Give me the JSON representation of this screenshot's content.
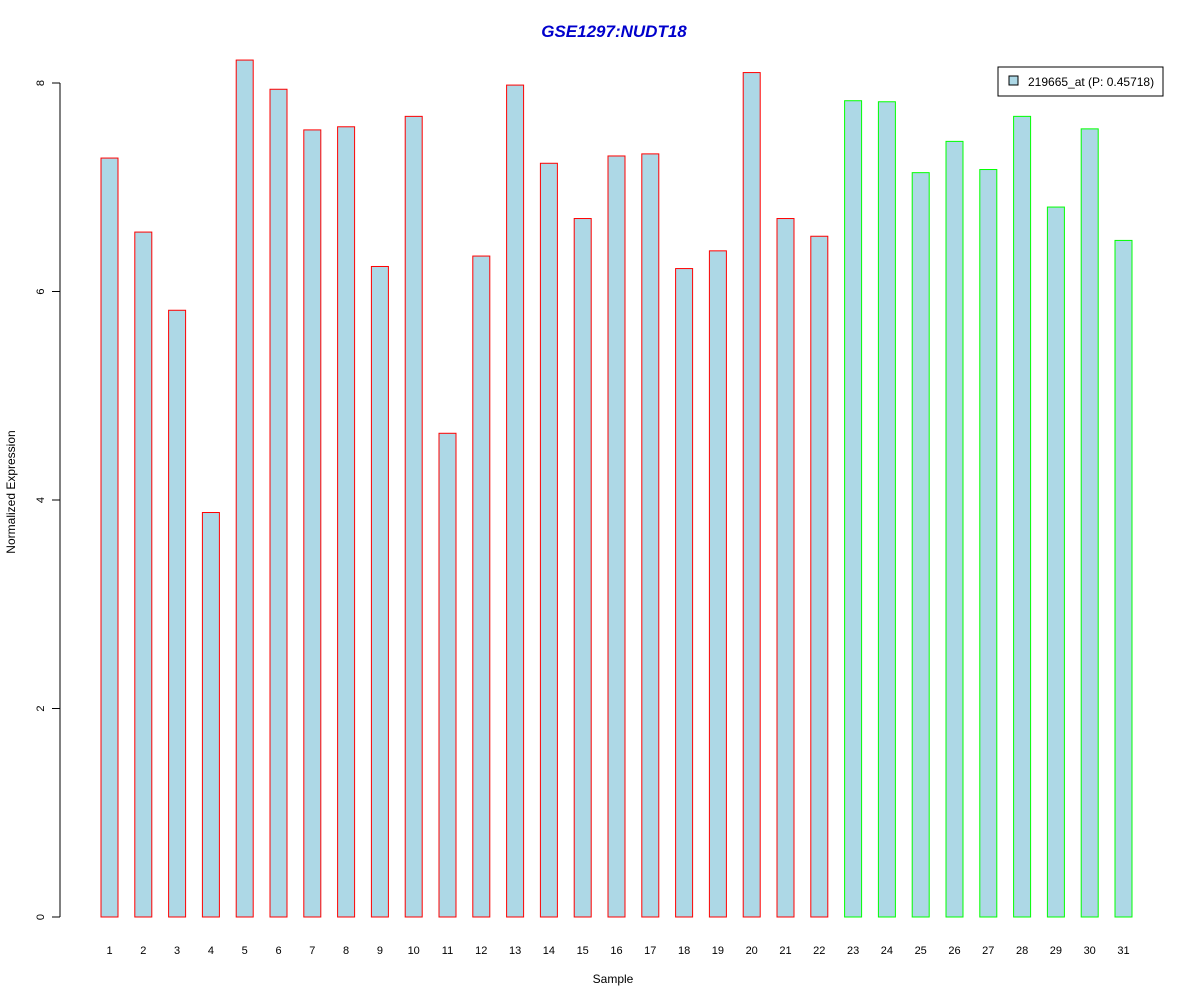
{
  "chart_data": {
    "type": "bar",
    "title": "GSE1297:NUDT18",
    "xlabel": "Sample",
    "ylabel": "Normalized Expression",
    "ylim": [
      0,
      8.2
    ],
    "yticks": [
      0,
      2,
      4,
      6,
      8
    ],
    "categories": [
      "1",
      "2",
      "3",
      "4",
      "5",
      "6",
      "7",
      "8",
      "9",
      "10",
      "11",
      "12",
      "13",
      "14",
      "15",
      "16",
      "17",
      "18",
      "19",
      "20",
      "21",
      "22",
      "23",
      "24",
      "25",
      "26",
      "27",
      "28",
      "29",
      "30",
      "31"
    ],
    "series": [
      {
        "name": "219665_at (P: 0.45718)",
        "values": [
          7.28,
          6.57,
          5.82,
          3.88,
          8.22,
          7.94,
          7.55,
          7.58,
          6.24,
          7.68,
          4.64,
          6.34,
          7.98,
          7.23,
          6.7,
          7.3,
          7.32,
          6.22,
          6.39,
          8.1,
          6.7,
          6.53,
          7.83,
          7.82,
          7.14,
          7.44,
          7.17,
          7.68,
          6.81,
          7.56,
          6.49
        ]
      }
    ],
    "groups": [
      {
        "samples": [
          1,
          22
        ],
        "border_color": "#ff0000"
      },
      {
        "samples": [
          23,
          31
        ],
        "border_color": "#00ff00"
      }
    ],
    "fill_color": "#add8e6",
    "title_color": "#0000cc",
    "legend": {
      "label": "219665_at (P: 0.45718)",
      "placement": "top-right"
    },
    "grid": false
  }
}
